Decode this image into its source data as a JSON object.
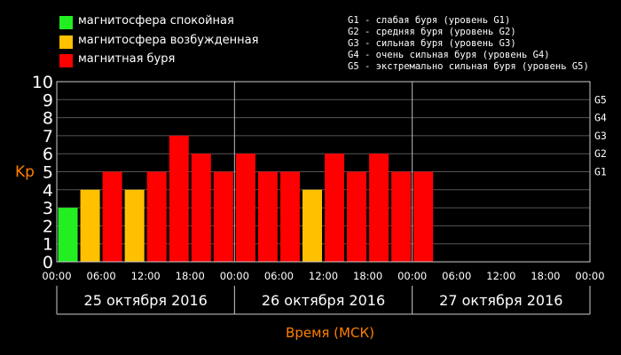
{
  "legend": [
    {
      "label": "магнитосфера спокойная",
      "color": "#22ee22"
    },
    {
      "label": "магнитосфера возбужденная",
      "color": "#ffc000"
    },
    {
      "label": "магнитная буря",
      "color": "#ff0000"
    }
  ],
  "g_scale": [
    "G1 - слабая буря (уровень G1)",
    "G2 - средняя буря (уровень G2)",
    "G3 - сильная буря (уровень G3)",
    "G4 - очень сильная буря (уровень G4)",
    "G5 - экстремально сильная буря (уровень G5)"
  ],
  "chart_data": {
    "type": "bar",
    "ylabel": "Kp",
    "xlabel": "Время (МСК)",
    "ylim": [
      0,
      10
    ],
    "yticks": [
      "0",
      "1",
      "2",
      "3",
      "4",
      "5",
      "6",
      "7",
      "8",
      "9",
      "10"
    ],
    "right_ticks": [
      {
        "label": "G1",
        "value": 5
      },
      {
        "label": "G2",
        "value": 6
      },
      {
        "label": "G3",
        "value": 7
      },
      {
        "label": "G4",
        "value": 8
      },
      {
        "label": "G5",
        "value": 9
      }
    ],
    "xticks": [
      "00:00",
      "06:00",
      "12:00",
      "18:00",
      "00:00",
      "06:00",
      "12:00",
      "18:00",
      "00:00",
      "06:00",
      "12:00",
      "18:00",
      "00:00"
    ],
    "days": [
      "25 октября 2016",
      "26 октября 2016",
      "27 октября 2016"
    ],
    "slots": 24,
    "values": [
      3,
      4,
      5,
      4,
      5,
      7,
      6,
      5,
      6,
      5,
      5,
      4,
      6,
      5,
      6,
      5,
      5
    ],
    "colors": [
      "#22ee22",
      "#ffc000",
      "#ff0000",
      "#ffc000",
      "#ff0000",
      "#ff0000",
      "#ff0000",
      "#ff0000",
      "#ff0000",
      "#ff0000",
      "#ff0000",
      "#ffc000",
      "#ff0000",
      "#ff0000",
      "#ff0000",
      "#ff0000",
      "#ff0000"
    ],
    "grid": true,
    "legend_position": "top-left"
  }
}
